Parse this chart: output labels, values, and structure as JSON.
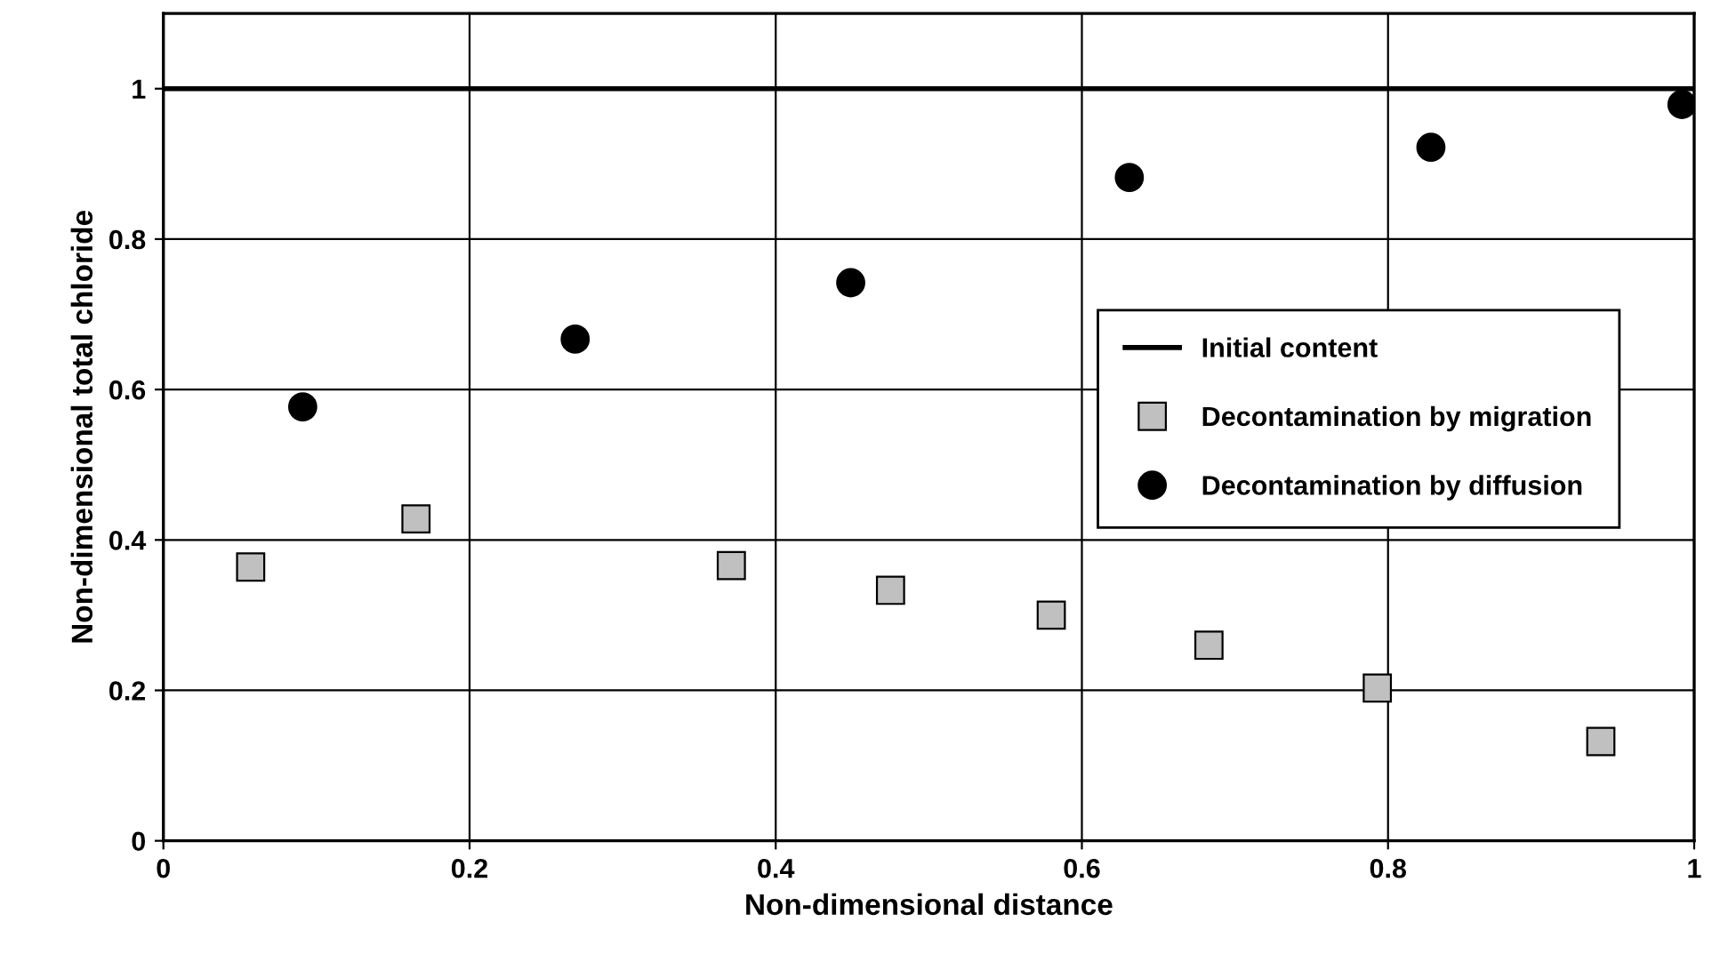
{
  "chart_data": {
    "type": "scatter",
    "xlabel": "Non-dimensional distance",
    "ylabel": "Non-dimensional total chloride",
    "xlim": [
      0,
      1
    ],
    "ylim": [
      0,
      1.1
    ],
    "xticks": [
      0,
      0.2,
      0.4,
      0.6,
      0.8,
      1
    ],
    "yticks": [
      0,
      0.2,
      0.4,
      0.6,
      0.8,
      1
    ],
    "grid": true,
    "legend": "right",
    "series": [
      {
        "name": "Initial content",
        "type": "line",
        "color": "#000000",
        "marker": "none",
        "x": [
          0,
          1
        ],
        "values": [
          1,
          1
        ]
      },
      {
        "name": "Decontamination by migration",
        "color": "#c0c0c0",
        "marker": "square",
        "x": [
          0.057,
          0.165,
          0.371,
          0.475,
          0.58,
          0.683,
          0.793,
          0.939
        ],
        "values": [
          0.364,
          0.428,
          0.366,
          0.333,
          0.3,
          0.26,
          0.203,
          0.132
        ]
      },
      {
        "name": "Decontamination by diffusion",
        "color": "#000000",
        "marker": "circle",
        "x": [
          0.091,
          0.269,
          0.449,
          0.631,
          0.828,
          0.992
        ],
        "values": [
          0.577,
          0.667,
          0.742,
          0.882,
          0.922,
          0.979
        ]
      }
    ]
  }
}
